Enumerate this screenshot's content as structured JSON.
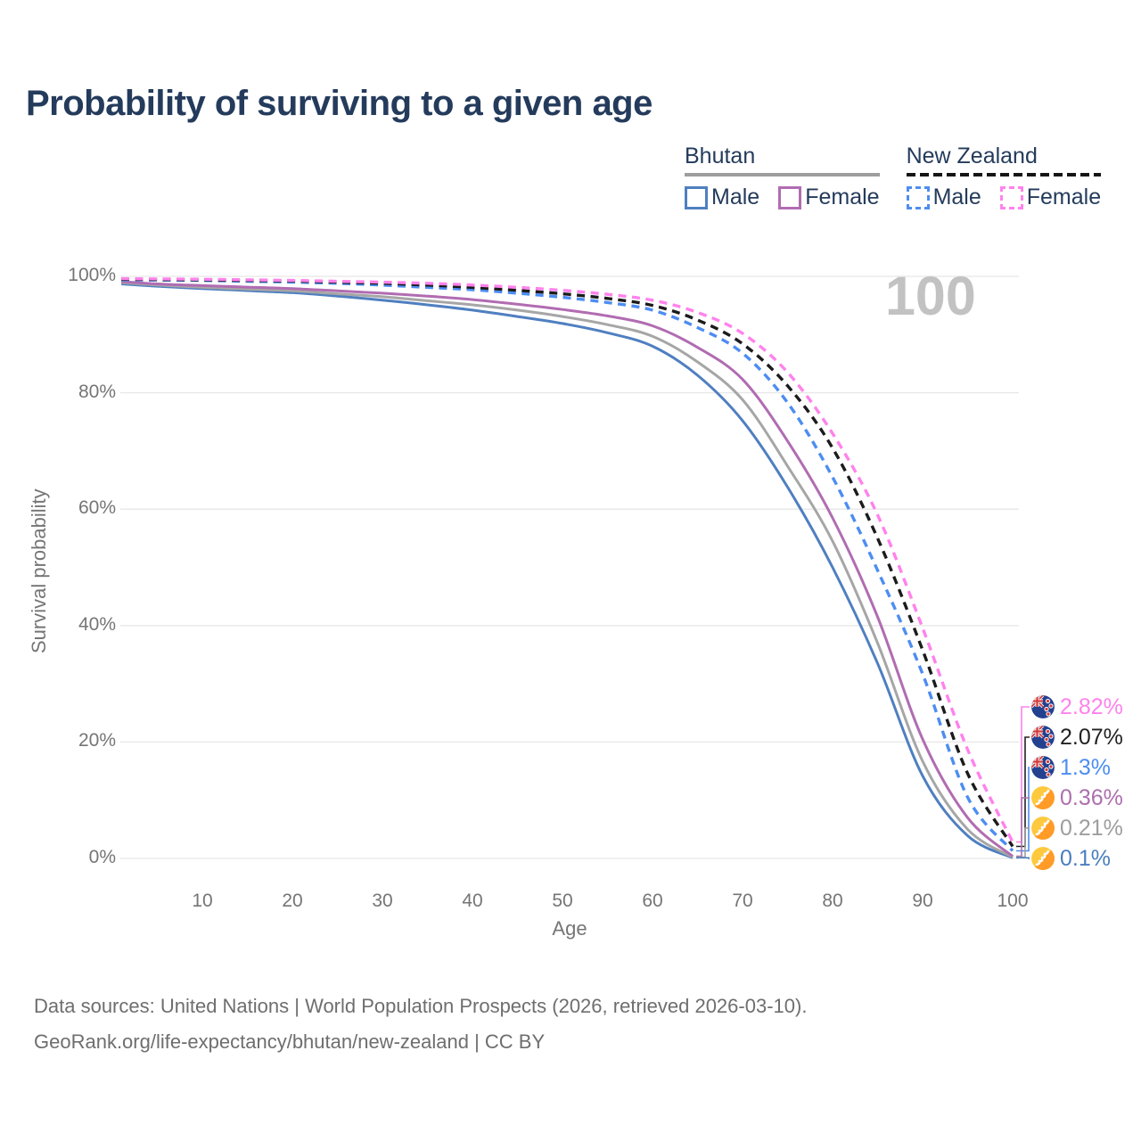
{
  "title": "Probability of surviving to a given age",
  "watermark_age": "100",
  "colors": {
    "title_text": "#243b5c",
    "axis_text": "#757575",
    "gridline": "#e7e7e7",
    "watermark": "#c2c2c2",
    "footer_text": "#6e6e6e",
    "bhutan_male": "#4f7fc0",
    "bhutan_female": "#b16cb2",
    "bhutan_total": "#a6a6a6",
    "nz_male": "#4d8df2",
    "nz_female": "#ff82ec",
    "nz_total": "#1b1b1b"
  },
  "legend": {
    "groups": [
      {
        "id": "bhutan",
        "label": "Bhutan",
        "line_style": "solid",
        "underline_color": "#9e9e9e",
        "items": [
          {
            "label": "Male",
            "color": "#4f7fc0",
            "box_style": "solid"
          },
          {
            "label": "Female",
            "color": "#b16cb2",
            "box_style": "solid"
          }
        ]
      },
      {
        "id": "new-zealand",
        "label": "New Zealand",
        "line_style": "dashed",
        "underline_color": "#151515",
        "items": [
          {
            "label": "Male",
            "color": "#4d8df2",
            "box_style": "dashed"
          },
          {
            "label": "Female",
            "color": "#ff82ec",
            "box_style": "dashed"
          }
        ]
      }
    ]
  },
  "chart_data": {
    "type": "line",
    "title": "Probability of surviving to a given age",
    "xlabel": "Age",
    "ylabel": "Survival probability",
    "xlim": [
      1,
      100
    ],
    "ylim": [
      0,
      100
    ],
    "grid": "horizontal",
    "legend_position": "top-right",
    "x_ticks": [
      10,
      20,
      30,
      40,
      50,
      60,
      70,
      80,
      90,
      100
    ],
    "y_ticks": [
      0,
      20,
      40,
      60,
      80,
      100
    ],
    "y_tick_labels": [
      "0%",
      "20%",
      "40%",
      "60%",
      "80%",
      "100%"
    ],
    "x": [
      1,
      5,
      10,
      15,
      20,
      25,
      30,
      35,
      40,
      45,
      50,
      55,
      60,
      65,
      70,
      75,
      80,
      85,
      90,
      95,
      100
    ],
    "series": [
      {
        "name": "Bhutan Male",
        "country": "Bhutan",
        "sex": "Male",
        "style": "solid",
        "color": "#4f7fc0",
        "values": [
          98.7,
          98.3,
          97.9,
          97.55,
          97.2,
          96.6,
          95.9,
          95.1,
          94.2,
          93.1,
          91.9,
          90.3,
          88.0,
          83.0,
          75.2,
          63.8,
          50.0,
          33.5,
          14.2,
          3.9,
          0.1
        ]
      },
      {
        "name": "Bhutan Both sexes",
        "country": "Bhutan",
        "sex": "Both",
        "style": "solid",
        "color": "#a6a6a6",
        "values": [
          98.9,
          98.5,
          98.1,
          97.8,
          97.5,
          97.0,
          96.5,
          95.8,
          95.1,
          94.2,
          93.1,
          91.7,
          89.7,
          85.3,
          78.8,
          67.4,
          54.5,
          37.0,
          16.7,
          5.0,
          0.21
        ]
      },
      {
        "name": "Bhutan Female",
        "country": "Bhutan",
        "sex": "Female",
        "style": "solid",
        "color": "#b16cb2",
        "values": [
          99.1,
          98.7,
          98.4,
          98.15,
          97.9,
          97.5,
          97.1,
          96.6,
          96.0,
          95.2,
          94.3,
          93.2,
          91.5,
          87.8,
          82.3,
          71.7,
          58.5,
          41.5,
          20.5,
          7.0,
          0.36
        ]
      },
      {
        "name": "New Zealand Male",
        "country": "New Zealand",
        "sex": "Male",
        "style": "dashed",
        "color": "#4d8df2",
        "values": [
          99.4,
          99.35,
          99.3,
          99.15,
          99.0,
          98.8,
          98.5,
          98.1,
          97.7,
          97.1,
          96.4,
          95.5,
          94.2,
          91.2,
          86.8,
          78.3,
          65.5,
          49.5,
          31.7,
          10.5,
          1.3
        ]
      },
      {
        "name": "New Zealand Both sexes",
        "country": "New Zealand",
        "sex": "Both",
        "style": "dashed",
        "color": "#1b1b1b",
        "values": [
          99.5,
          99.45,
          99.4,
          99.3,
          99.2,
          99.0,
          98.8,
          98.5,
          98.1,
          97.6,
          97.0,
          96.2,
          95.0,
          92.5,
          88.4,
          81.2,
          70.5,
          55.0,
          35.8,
          14.6,
          2.07
        ]
      },
      {
        "name": "New Zealand Female",
        "country": "New Zealand",
        "sex": "Female",
        "style": "dashed",
        "color": "#ff82ec",
        "values": [
          99.6,
          99.55,
          99.5,
          99.4,
          99.3,
          99.15,
          99.0,
          98.8,
          98.5,
          98.1,
          97.6,
          96.9,
          95.9,
          93.8,
          90.2,
          83.5,
          73.0,
          59.0,
          39.6,
          18.7,
          2.82
        ]
      }
    ],
    "end_labels": [
      {
        "value": "2.82%",
        "color": "#ff82ec",
        "flag": "new-zealand",
        "series": "New Zealand Female"
      },
      {
        "value": "2.07%",
        "color": "#222222",
        "flag": "new-zealand",
        "series": "New Zealand Both sexes"
      },
      {
        "value": "1.3%",
        "color": "#4d8df2",
        "flag": "new-zealand",
        "series": "New Zealand Male"
      },
      {
        "value": "0.36%",
        "color": "#ad6fad",
        "flag": "bhutan",
        "series": "Bhutan Female"
      },
      {
        "value": "0.21%",
        "color": "#9e9e9e",
        "flag": "bhutan",
        "series": "Bhutan Both sexes"
      },
      {
        "value": "0.1%",
        "color": "#4a7ec0",
        "flag": "bhutan",
        "series": "Bhutan Male"
      }
    ],
    "annotation": "100"
  },
  "footer": {
    "line1": "Data sources: United Nations | World Population Prospects (2026, retrieved 2026-03-10).",
    "line2": "GeoRank.org/life-expectancy/bhutan/new-zealand | CC BY"
  }
}
